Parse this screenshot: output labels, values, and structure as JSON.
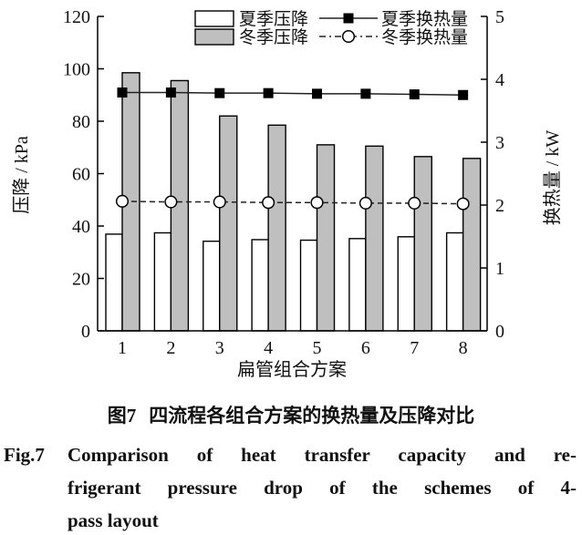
{
  "figure": {
    "caption_zh_label": "图7",
    "caption_zh_text": "四流程各组合方案的换热量及压降对比",
    "caption_en_label": "Fig.7",
    "caption_en_lines": [
      "Comparison of heat transfer capacity and re-",
      "frigerant pressure drop of the schemes of 4-",
      "pass layout"
    ]
  },
  "chart_data": {
    "type": "bar",
    "title": "",
    "xlabel": "扁管组合方案",
    "ylabel_left": "压降 / kPa",
    "ylabel_right": "换热量 / kW",
    "categories": [
      "1",
      "2",
      "3",
      "4",
      "5",
      "6",
      "7",
      "8"
    ],
    "left_axis": {
      "range": [
        0,
        120
      ],
      "ticks": [
        0,
        20,
        40,
        60,
        80,
        100,
        120
      ]
    },
    "right_axis": {
      "range": [
        0,
        5
      ],
      "ticks": [
        0,
        1,
        2,
        3,
        4,
        5
      ]
    },
    "grid": false,
    "legend_position": "top",
    "colors": {
      "bar_fill_summer": "#ffffff",
      "bar_fill_winter": "#bfbfbf",
      "line": "#222222",
      "axis": "#000000"
    },
    "series": [
      {
        "name": "夏季压降",
        "type": "bar",
        "axis": "left",
        "values": [
          36.9,
          37.4,
          34.2,
          34.8,
          34.6,
          35.2,
          35.9,
          37.4
        ]
      },
      {
        "name": "冬季压降",
        "type": "bar",
        "axis": "left",
        "values": [
          98.5,
          95.5,
          82.0,
          78.5,
          71.0,
          70.5,
          66.5,
          65.8
        ]
      },
      {
        "name": "夏季换热量",
        "type": "line",
        "axis": "right",
        "marker": "filled-square",
        "line_style": "solid",
        "values": [
          3.79,
          3.79,
          3.78,
          3.78,
          3.77,
          3.77,
          3.76,
          3.75
        ]
      },
      {
        "name": "冬季换热量",
        "type": "line",
        "axis": "right",
        "marker": "open-circle",
        "line_style": "dashed",
        "values": [
          2.06,
          2.05,
          2.05,
          2.04,
          2.04,
          2.03,
          2.03,
          2.02
        ]
      }
    ]
  }
}
